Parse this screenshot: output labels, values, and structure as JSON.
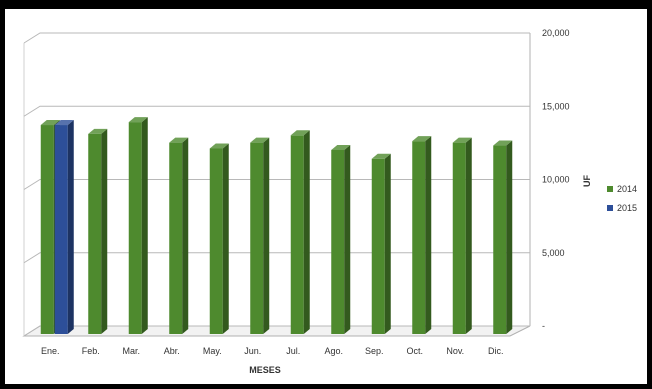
{
  "chart_data": {
    "type": "bar",
    "categories": [
      "Ene.",
      "Feb.",
      "Mar.",
      "Abr.",
      "May.",
      "Jun.",
      "Jul.",
      "Ago.",
      "Sep.",
      "Oct.",
      "Nov.",
      "Dic."
    ],
    "series": [
      {
        "name": "2014",
        "color": "#4e8a2e",
        "values": [
          14400,
          13800,
          14600,
          13200,
          12800,
          13200,
          13700,
          12700,
          12100,
          13300,
          13200,
          13000
        ]
      },
      {
        "name": "2015",
        "color": "#2d4f99",
        "values": [
          14400,
          null,
          null,
          null,
          null,
          null,
          null,
          null,
          null,
          null,
          null,
          null
        ]
      }
    ],
    "xlabel": "MESES",
    "ylabel": "UF",
    "ylim": [
      0,
      20000
    ],
    "yticks": [
      "-",
      "5,000",
      "10,000",
      "15,000",
      "20,000"
    ],
    "grid": true,
    "legend_position": "right"
  }
}
